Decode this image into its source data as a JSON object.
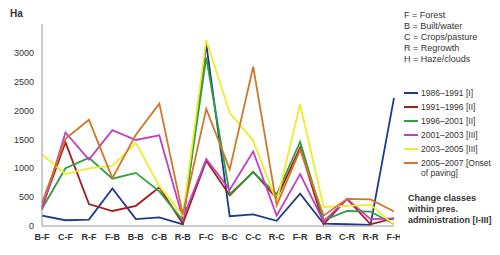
{
  "chart_data": {
    "type": "line",
    "y_label": "Ha",
    "x_label": "Change classes within pres. administration [I-III]",
    "annotations": [
      "F = Forest",
      "B = Built/water",
      "C = Crops/pasture",
      "R = Regrowth",
      "H = Haze/clouds"
    ],
    "categories": [
      "B-F",
      "C-F",
      "R-F",
      "F-B",
      "B-B",
      "C-B",
      "R-B",
      "F-C",
      "B-C",
      "C-C",
      "R-C",
      "F-R",
      "B-R",
      "C-R",
      "R-R",
      "F-H"
    ],
    "ylim": [
      0,
      3500
    ],
    "yticks": [
      0,
      500,
      1000,
      1500,
      2000,
      2500,
      3000
    ],
    "grid": false,
    "legend": "right",
    "series": [
      {
        "name": "1986–1991 [I]",
        "color": "#1f3a8a",
        "values": [
          180,
          100,
          110,
          650,
          120,
          150,
          30,
          3150,
          170,
          200,
          90,
          560,
          40,
          30,
          20,
          2220
        ]
      },
      {
        "name": "1991–1996 [II]",
        "color": "#a51c1c",
        "values": [
          330,
          1450,
          380,
          260,
          350,
          670,
          40,
          1130,
          530,
          940,
          480,
          1360,
          30,
          470,
          30,
          130
        ]
      },
      {
        "name": "1996–2001 [II]",
        "color": "#2e9e3f",
        "values": [
          300,
          1000,
          1180,
          820,
          920,
          600,
          100,
          2920,
          550,
          930,
          550,
          1460,
          100,
          260,
          250,
          30
        ]
      },
      {
        "name": "2001–2003 [III]",
        "color": "#c040c0",
        "values": [
          280,
          1620,
          1150,
          1660,
          1490,
          1570,
          130,
          1160,
          630,
          1290,
          180,
          900,
          80,
          470,
          120,
          130
        ]
      },
      {
        "name": "2003–2005 [III]",
        "color": "#f0ec2a",
        "values": [
          1240,
          900,
          1000,
          1040,
          1440,
          690,
          180,
          3220,
          1960,
          1480,
          420,
          2110,
          330,
          350,
          370,
          20
        ]
      },
      {
        "name": "2005–2007 [Onset of paving]",
        "color": "#d0782a",
        "values": [
          400,
          1510,
          1840,
          830,
          1580,
          2120,
          200,
          2030,
          980,
          2760,
          360,
          1320,
          180,
          470,
          460,
          250
        ]
      }
    ]
  }
}
